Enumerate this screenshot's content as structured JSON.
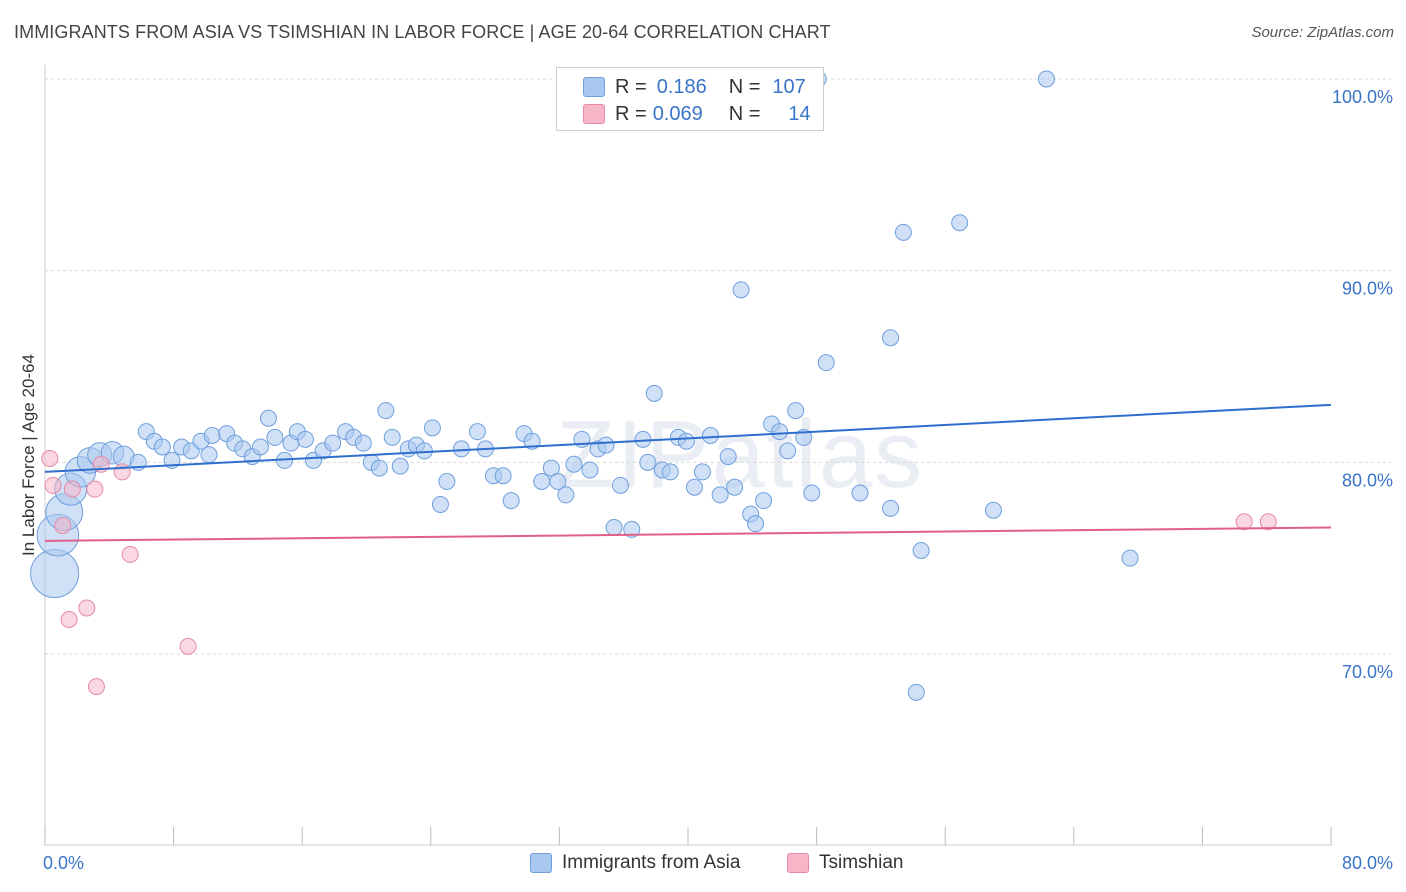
{
  "title": "IMMIGRANTS FROM ASIA VS TSIMSHIAN IN LABOR FORCE | AGE 20-64 CORRELATION CHART",
  "source": "Source: ZipAtlas.com",
  "watermark": {
    "zip": "ZIP",
    "atlas": "atlas"
  },
  "legend": [
    {
      "r_label": "R =",
      "r_value": "0.186",
      "n_label": "N =",
      "n_value": "107",
      "color": "#a9c8f0"
    },
    {
      "r_label": "R =",
      "r_value": "0.069",
      "n_label": "N =",
      "n_value": "14",
      "color": "#f7b6c8"
    }
  ],
  "chart_data": {
    "type": "scatter",
    "ylabel": "In Labor Force | Age 20-64",
    "x_tick_labels": [
      "0.0%",
      "80.0%"
    ],
    "y_tick_labels": [
      "100.0%",
      "90.0%",
      "80.0%",
      "70.0%"
    ],
    "y_tick_values": [
      100,
      90,
      80,
      70
    ],
    "xlim": [
      0,
      80
    ],
    "ylim": [
      60,
      104
    ],
    "grid": "horizontal dashed",
    "legend_position": "top-center",
    "series": [
      {
        "name": "Immigrants from Asia",
        "color": "#a9c8f0",
        "stroke": "#6f9fdc",
        "trend": {
          "start": [
            0,
            79.5
          ],
          "end": [
            80,
            83.0
          ],
          "color": "#2e6fce"
        },
        "points": [
          [
            0.6,
            74.2,
            3
          ],
          [
            0.8,
            76.2,
            2.6
          ],
          [
            1.2,
            77.4,
            2.3
          ],
          [
            1.6,
            78.6,
            2
          ],
          [
            2.2,
            79.5,
            1.9
          ],
          [
            2.8,
            80.1,
            1.6
          ],
          [
            3.4,
            80.4,
            1.5
          ],
          [
            4.2,
            80.5,
            1.4
          ],
          [
            4.9,
            80.3,
            1.3
          ],
          [
            5.8,
            80,
            1
          ],
          [
            6.3,
            81.6,
            1
          ],
          [
            6.8,
            81.1,
            1
          ],
          [
            7.3,
            80.8,
            1
          ],
          [
            7.9,
            80.1,
            1
          ],
          [
            8.5,
            80.8,
            1
          ],
          [
            9.1,
            80.6,
            1
          ],
          [
            9.7,
            81.1,
            1
          ],
          [
            10.2,
            80.4,
            1
          ],
          [
            10.4,
            81.4,
            1
          ],
          [
            11.3,
            81.5,
            1
          ],
          [
            11.8,
            81.0,
            1
          ],
          [
            12.3,
            80.7,
            1
          ],
          [
            12.9,
            80.3,
            1
          ],
          [
            13.4,
            80.8,
            1
          ],
          [
            13.9,
            82.3,
            1
          ],
          [
            14.3,
            81.3,
            1
          ],
          [
            14.9,
            80.1,
            1
          ],
          [
            15.3,
            81.0,
            1
          ],
          [
            15.7,
            81.6,
            1
          ],
          [
            16.2,
            81.2,
            1
          ],
          [
            16.7,
            80.1,
            1
          ],
          [
            17.3,
            80.6,
            1
          ],
          [
            17.9,
            81.0,
            1
          ],
          [
            18.7,
            81.6,
            1
          ],
          [
            19.2,
            81.3,
            1
          ],
          [
            19.8,
            81.0,
            1
          ],
          [
            20.3,
            80.0,
            1
          ],
          [
            20.8,
            79.7,
            1
          ],
          [
            21.2,
            82.7,
            1
          ],
          [
            21.6,
            81.3,
            1
          ],
          [
            22.1,
            79.8,
            1
          ],
          [
            22.6,
            80.7,
            1
          ],
          [
            23.1,
            80.9,
            1
          ],
          [
            23.6,
            80.6,
            1
          ],
          [
            24.1,
            81.8,
            1
          ],
          [
            24.6,
            77.8,
            1
          ],
          [
            25.0,
            79.0,
            1
          ],
          [
            25.9,
            80.7,
            1
          ],
          [
            26.9,
            81.6,
            1
          ],
          [
            27.4,
            80.7,
            1
          ],
          [
            27.9,
            79.3,
            1
          ],
          [
            28.5,
            79.3,
            1
          ],
          [
            29.0,
            78.0,
            1
          ],
          [
            29.8,
            81.5,
            1
          ],
          [
            30.3,
            81.1,
            1
          ],
          [
            30.9,
            79.0,
            1
          ],
          [
            31.5,
            79.7,
            1
          ],
          [
            31.9,
            79.0,
            1
          ],
          [
            32.4,
            78.3,
            1
          ],
          [
            32.9,
            79.9,
            1
          ],
          [
            33.4,
            81.2,
            1
          ],
          [
            33.9,
            79.6,
            1
          ],
          [
            34.4,
            80.7,
            1
          ],
          [
            34.9,
            80.9,
            1
          ],
          [
            35.4,
            76.6,
            1
          ],
          [
            35.8,
            78.8,
            1
          ],
          [
            36.5,
            76.5,
            1
          ],
          [
            37.2,
            81.2,
            1
          ],
          [
            37.5,
            80.0,
            1
          ],
          [
            37.9,
            83.6,
            1
          ],
          [
            38.4,
            79.6,
            1
          ],
          [
            38.9,
            79.5,
            1
          ],
          [
            39.4,
            81.3,
            1
          ],
          [
            39.9,
            81.1,
            1
          ],
          [
            40.4,
            78.7,
            1
          ],
          [
            40.9,
            79.5,
            1
          ],
          [
            41.4,
            81.4,
            1
          ],
          [
            42.0,
            78.3,
            1
          ],
          [
            42.5,
            80.3,
            1
          ],
          [
            42.9,
            78.7,
            1
          ],
          [
            43.3,
            89.0,
            1
          ],
          [
            43.9,
            77.3,
            1
          ],
          [
            44.2,
            76.8,
            1
          ],
          [
            44.7,
            78.0,
            1
          ],
          [
            45.2,
            82.0,
            1
          ],
          [
            45.7,
            81.6,
            1
          ],
          [
            46.2,
            80.6,
            1
          ],
          [
            46.7,
            82.7,
            1
          ],
          [
            47.2,
            81.3,
            1
          ],
          [
            47.7,
            78.4,
            1
          ],
          [
            48.1,
            100.0,
            1
          ],
          [
            48.6,
            85.2,
            1
          ],
          [
            50.7,
            78.4,
            1
          ],
          [
            52.6,
            77.6,
            1
          ],
          [
            52.6,
            86.5,
            1
          ],
          [
            53.4,
            92.0,
            1
          ],
          [
            54.5,
            75.4,
            1
          ],
          [
            54.2,
            68.0,
            1
          ],
          [
            56.9,
            92.5,
            1
          ],
          [
            59.0,
            77.5,
            1
          ],
          [
            62.3,
            100.0,
            1
          ],
          [
            67.5,
            75.0,
            1
          ]
        ]
      },
      {
        "name": "Tsimshian",
        "color": "#f7b6c8",
        "stroke": "#e48aa6",
        "trend": {
          "start": [
            0,
            75.9
          ],
          "end": [
            80,
            76.6
          ],
          "color": "#e0608a"
        },
        "points": [
          [
            0.3,
            80.2
          ],
          [
            0.5,
            78.8
          ],
          [
            1.1,
            76.7
          ],
          [
            1.5,
            71.8
          ],
          [
            1.7,
            78.6
          ],
          [
            2.6,
            72.4
          ],
          [
            3.1,
            78.6
          ],
          [
            3.2,
            68.3
          ],
          [
            3.5,
            79.9
          ],
          [
            4.8,
            79.5
          ],
          [
            5.3,
            75.2
          ],
          [
            8.9,
            70.4
          ],
          [
            74.6,
            76.9
          ],
          [
            76.1,
            76.9
          ]
        ]
      }
    ]
  },
  "bottom_legend": [
    {
      "label": "Immigrants from Asia",
      "color": "#a9c8f0"
    },
    {
      "label": "Tsimshian",
      "color": "#f7b6c8"
    }
  ]
}
